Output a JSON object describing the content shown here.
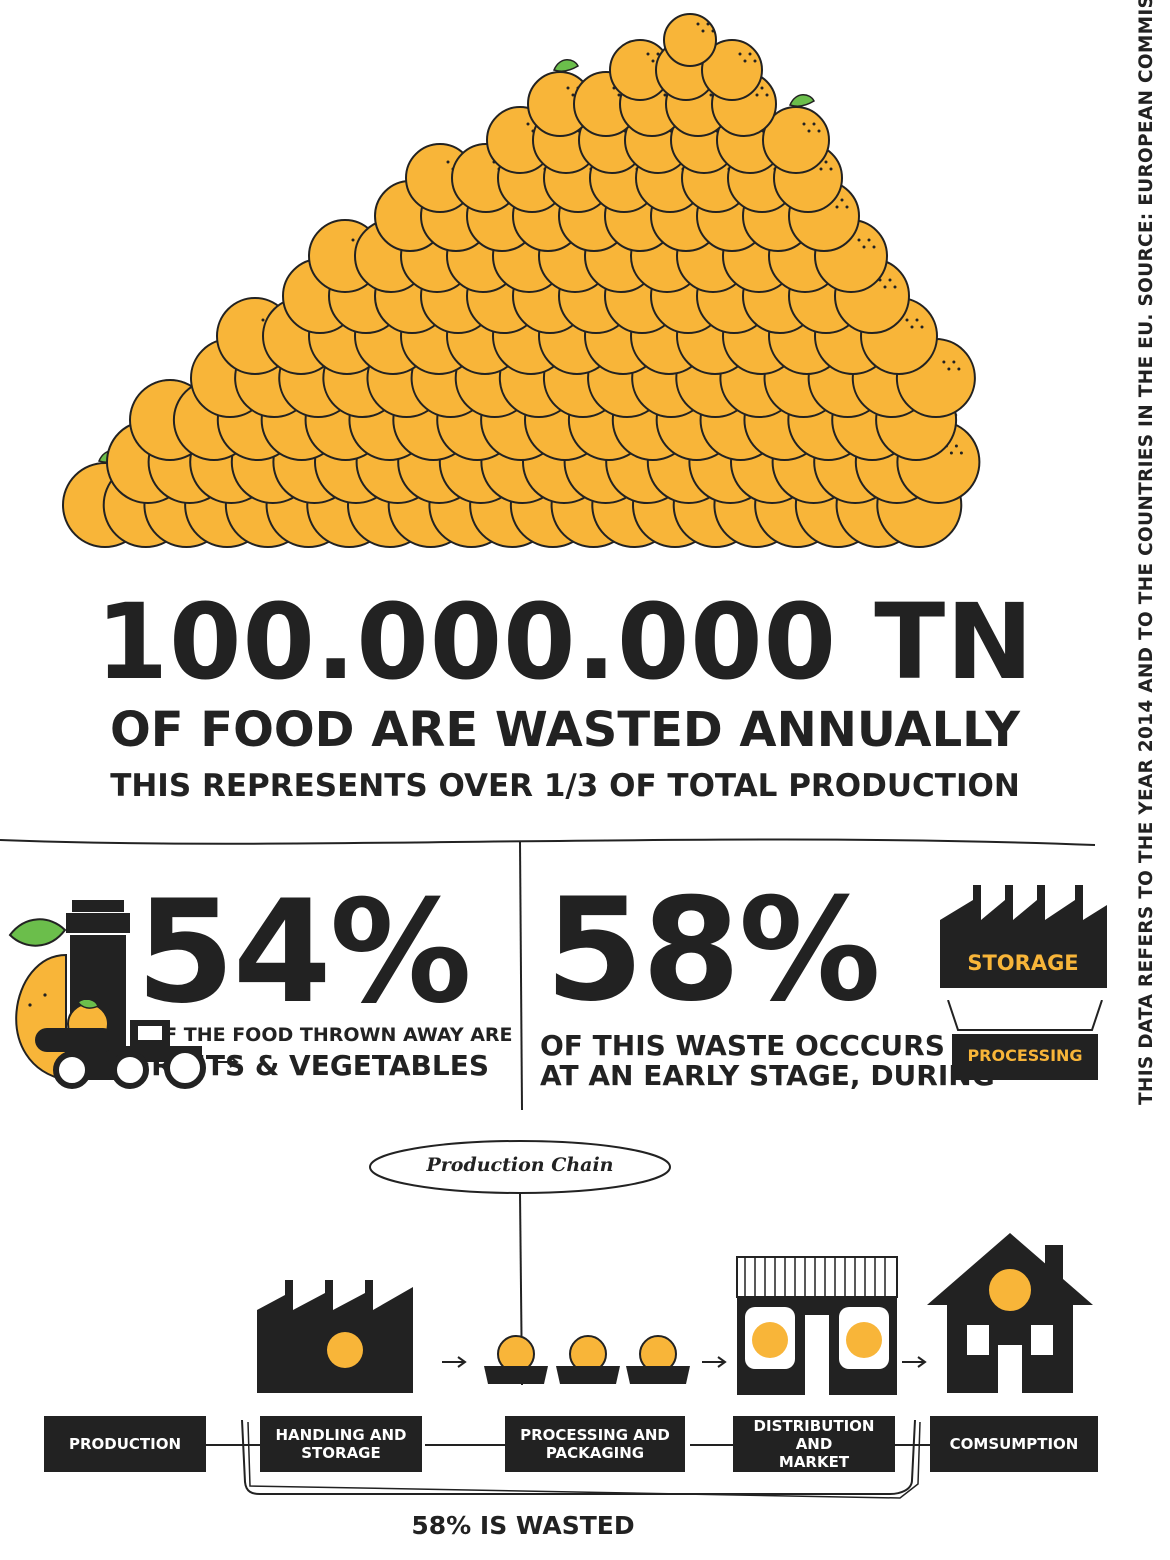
{
  "headline": {
    "amount": "100.000.000 TN",
    "line1": "OF FOOD ARE WASTED ANNUALLY",
    "line2": "THIS REPRESENTS OVER 1/3 OF TOTAL PRODUCTION"
  },
  "left_stat": {
    "percent": "54%",
    "caption_small": "OF THE FOOD THROWN AWAY ARE",
    "caption_big": "FRUITS & VEGETABLES"
  },
  "right_stat": {
    "percent": "58%",
    "caption_line1": "OF THIS WASTE OCCCURS",
    "caption_line2": "AT AN EARLY STAGE, DURING",
    "storage_label": "STORAGE",
    "processing_label": "PROCESSING"
  },
  "chain": {
    "bubble_label": "Production Chain",
    "steps": [
      {
        "label_line1": "PRODUCTION",
        "label_line2": ""
      },
      {
        "label_line1": "HANDLING AND",
        "label_line2": "STORAGE"
      },
      {
        "label_line1": "PROCESSING AND",
        "label_line2": "PACKAGING"
      },
      {
        "label_line1": "DISTRIBUTION AND",
        "label_line2": "MARKET"
      },
      {
        "label_line1": "COMSUMPTION",
        "label_line2": ""
      }
    ],
    "wasted_label": "58% IS WASTED"
  },
  "side_note": "THIS DATA REFERS TO THE YEAR 2014 AND TO THE COUNTRIES IN THE EU. SOURCE: EUROPEAN COMMISION",
  "colors": {
    "orange": "#F8B539",
    "dark": "#222222",
    "leaf": "#6BBE4B",
    "accent_text": "#F8B539"
  },
  "icons": [
    "orange-pile-illustration",
    "orange-icon",
    "trash-bin-icon",
    "factory-icon",
    "crate-icon",
    "tractor-icon",
    "market-stall-icon",
    "house-icon"
  ]
}
